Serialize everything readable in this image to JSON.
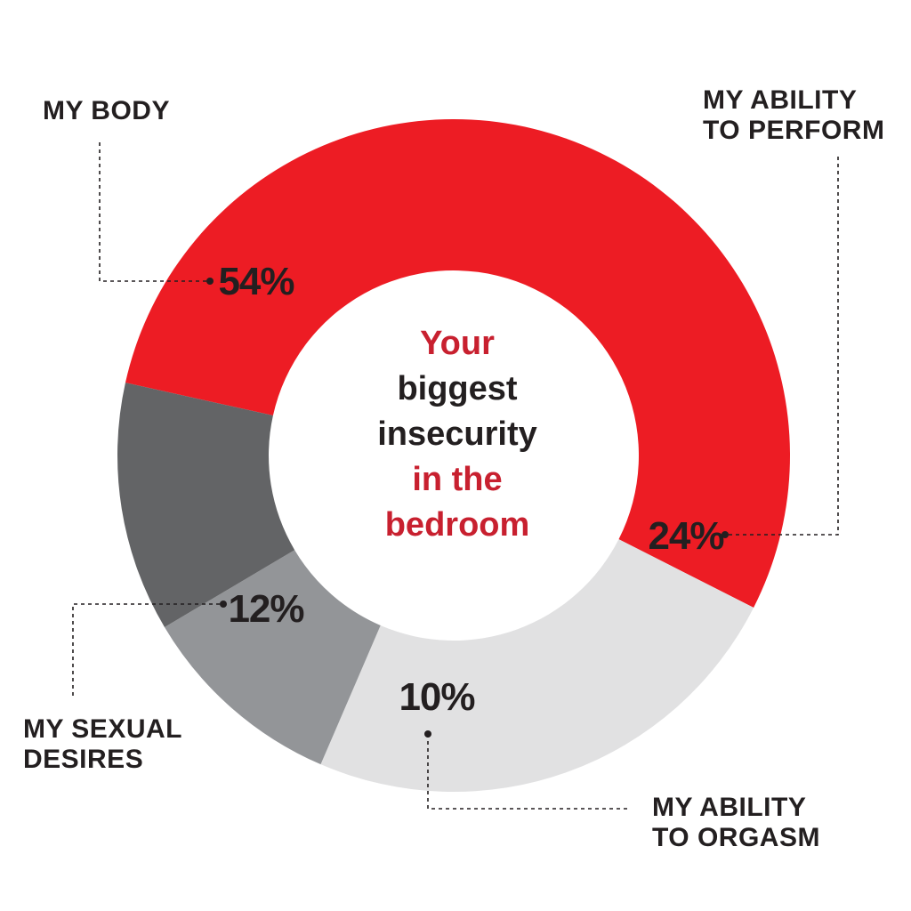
{
  "chart_data": {
    "type": "pie",
    "title_lines": [
      {
        "text": "Your",
        "color": "#c8202f"
      },
      {
        "text": "biggest",
        "color": "#231f20"
      },
      {
        "text": "insecurity",
        "color": "#231f20"
      },
      {
        "text": "in the",
        "color": "#c8202f"
      },
      {
        "text": "bedroom",
        "color": "#c8202f"
      }
    ],
    "slices": [
      {
        "name_lines": [
          "MY BODY"
        ],
        "value": 54,
        "value_label": "54%",
        "color": "#ed1c24"
      },
      {
        "name_lines": [
          "MY ABILITY",
          "TO PERFORM"
        ],
        "value": 24,
        "value_label": "24%",
        "color": "#e1e1e2"
      },
      {
        "name_lines": [
          "MY ABILITY",
          "TO ORGASM"
        ],
        "value": 10,
        "value_label": "10%",
        "color": "#939598"
      },
      {
        "name_lines": [
          "MY SEXUAL",
          "DESIRES"
        ],
        "value": 12,
        "value_label": "12%",
        "color": "#636466"
      }
    ]
  }
}
